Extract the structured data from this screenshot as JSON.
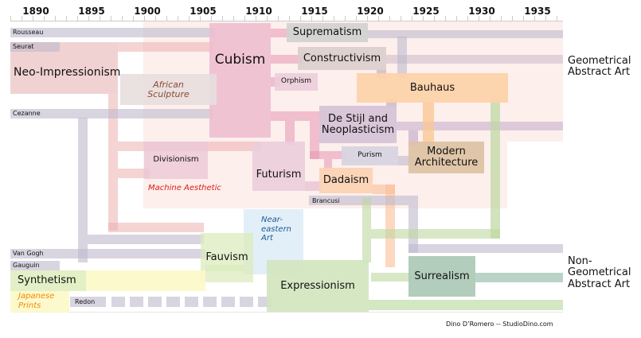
{
  "axis": {
    "years": [
      "1890",
      "1895",
      "1900",
      "1905",
      "1910",
      "1915",
      "1920",
      "1925",
      "1930",
      "1935"
    ]
  },
  "artists": {
    "rousseau": "Rousseau",
    "seurat": "Seurat",
    "cezanne": "Cezanne",
    "van_gogh": "Van Gogh",
    "gauguin": "Gauguin",
    "redon": "Redon",
    "brancusi": "Brancusi"
  },
  "movements": {
    "cubism": "Cubism",
    "suprematism": "Suprematism",
    "constructivism": "Constructivism",
    "orphism": "Orphism",
    "bauhaus": "Bauhaus",
    "de_stijl": "De Stijl and Neoplasticism",
    "modern_architecture": "Modern Architecture",
    "purism": "Purism",
    "futurism": "Futurism",
    "divisionism": "Divisionism",
    "dadaism": "Dadaism",
    "neo_impressionism": "Neo-Impressionism",
    "fauvism": "Fauvism",
    "synthetism": "Synthetism",
    "expressionism": "Expressionism",
    "surrealism": "Surrealism"
  },
  "influences": {
    "african_sculpture": "African Sculpture",
    "machine_aesthetic": "Machine Aesthetic",
    "near_eastern_art": "Near-eastern Art",
    "japanese_prints": "Japanese Prints"
  },
  "outcomes": {
    "geometrical": "Geometrical Abstract Art",
    "non_geometrical": "Non-Geometrical Abstract Art"
  },
  "credit": "Dino D’Romero --  StudioDino.com",
  "colors": {
    "bg_geometric": "#fcefec",
    "cubism": "#f0c4d4",
    "bauhaus": "#fcd5b0",
    "surrealism": "#b8d0c0",
    "expressionism": "#d8e8c4"
  }
}
